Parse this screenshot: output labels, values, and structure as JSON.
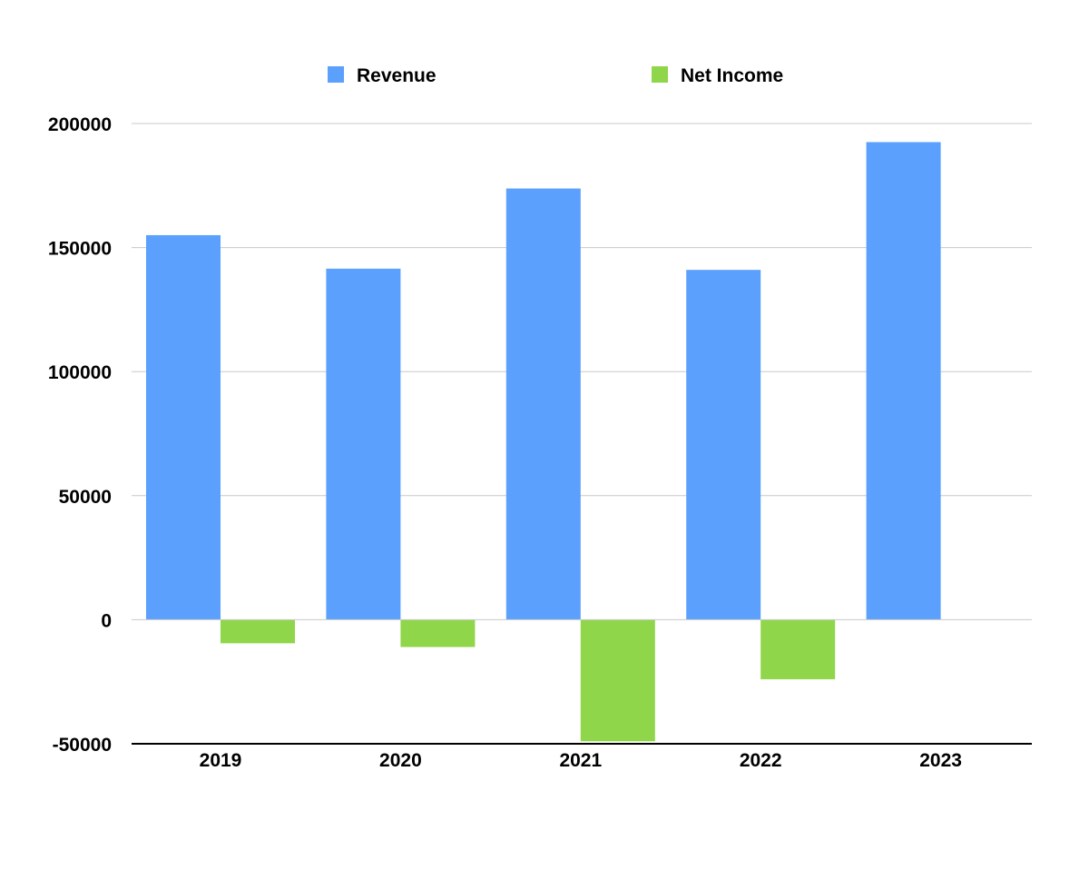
{
  "chart_data": {
    "type": "bar",
    "title": "",
    "xlabel": "",
    "ylabel": "",
    "categories": [
      "2019",
      "2020",
      "2021",
      "2022",
      "2023"
    ],
    "series": [
      {
        "name": "Revenue",
        "color": "#5ba0fd",
        "values": [
          155000,
          141500,
          173800,
          141000,
          192500
        ]
      },
      {
        "name": "Net Income",
        "color": "#8fd64b",
        "values": [
          -9500,
          -11000,
          -49000,
          -24000,
          0
        ]
      }
    ],
    "ylim": [
      -50000,
      200000
    ],
    "yticks": [
      200000,
      150000,
      100000,
      50000,
      0,
      -50000
    ],
    "y_tick_labels": [
      "200000",
      "150000",
      "100000",
      "50000",
      "0",
      "-50000"
    ],
    "grid": true,
    "legend_position": "top"
  }
}
